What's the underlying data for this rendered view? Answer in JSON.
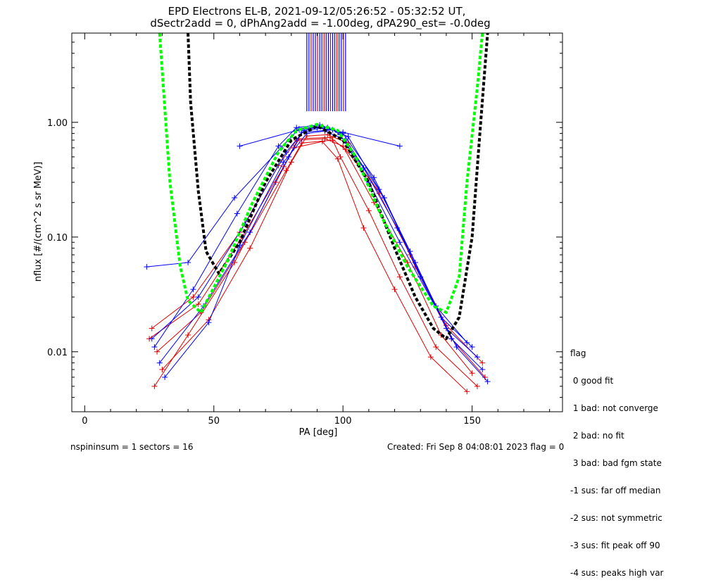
{
  "chart_data": {
    "type": "line",
    "title": "EPD Electrons EL-B, 2021-09-12/05:26:52 - 05:32:52 UT,",
    "subtitle": "dSectr2add = 0, dPhAng2add = -1.00deg, dPA290_est=  -0.0deg",
    "xlabel": "PA [deg]",
    "ylabel": "nflux [#/(cm^2 s sr MeV)]",
    "xlim": [
      -5,
      185
    ],
    "ylim": [
      0.003,
      6.0
    ],
    "yscale": "log",
    "xticks": [
      0,
      50,
      100,
      150
    ],
    "yticks": [
      0.01,
      0.1,
      1.0
    ],
    "ytick_labels": [
      "0.01",
      "0.10",
      "1.00"
    ],
    "series_colors": {
      "red": "#e00000",
      "blue": "#0000ff",
      "green_fit": "#00ff00",
      "black_fit": "#000000"
    },
    "saturated_pa_range": [
      86,
      101
    ],
    "red_series": [
      {
        "x": [
          26,
          42,
          60,
          75,
          82,
          93,
          100,
          112,
          125,
          138,
          150
        ],
        "y": [
          0.016,
          0.03,
          0.11,
          0.42,
          0.7,
          0.72,
          0.62,
          0.2,
          0.06,
          0.014,
          0.0065
        ]
      },
      {
        "x": [
          28,
          45,
          62,
          78,
          84,
          96,
          99,
          110,
          122,
          136,
          152
        ],
        "y": [
          0.01,
          0.022,
          0.09,
          0.38,
          0.66,
          0.7,
          0.5,
          0.17,
          0.045,
          0.011,
          0.005
        ]
      },
      {
        "x": [
          30,
          48,
          64,
          80,
          86,
          94,
          102,
          114,
          126,
          140,
          154
        ],
        "y": [
          0.007,
          0.019,
          0.08,
          0.45,
          0.76,
          0.78,
          0.66,
          0.24,
          0.07,
          0.017,
          0.008
        ]
      },
      {
        "x": [
          27,
          40,
          58,
          74,
          81,
          92,
          98,
          108,
          120,
          134,
          148
        ],
        "y": [
          0.005,
          0.014,
          0.06,
          0.3,
          0.6,
          0.68,
          0.48,
          0.12,
          0.035,
          0.009,
          0.0045
        ]
      },
      {
        "x": [
          25,
          44,
          61,
          77,
          83,
          95,
          101,
          116,
          128,
          142,
          155
        ],
        "y": [
          0.013,
          0.026,
          0.1,
          0.41,
          0.72,
          0.74,
          0.58,
          0.22,
          0.055,
          0.013,
          0.006
        ]
      }
    ],
    "blue_series": [
      {
        "x": [
          24,
          40,
          58,
          76,
          83,
          92,
          100,
          112,
          126,
          140,
          152
        ],
        "y": [
          0.055,
          0.06,
          0.22,
          0.6,
          0.88,
          0.92,
          0.8,
          0.33,
          0.075,
          0.016,
          0.009
        ]
      },
      {
        "x": [
          26,
          44,
          62,
          78,
          85,
          94,
          102,
          114,
          128,
          142,
          154
        ],
        "y": [
          0.013,
          0.03,
          0.13,
          0.55,
          0.85,
          0.9,
          0.75,
          0.26,
          0.06,
          0.013,
          0.007
        ]
      },
      {
        "x": [
          29,
          46,
          64,
          79,
          84,
          96,
          99,
          110,
          122,
          138,
          150
        ],
        "y": [
          0.008,
          0.025,
          0.11,
          0.5,
          0.82,
          0.86,
          0.78,
          0.3,
          0.09,
          0.02,
          0.011
        ]
      },
      {
        "x": [
          31,
          48,
          60,
          77,
          86,
          93,
          101,
          116,
          130,
          144,
          156
        ],
        "y": [
          0.006,
          0.018,
          0.085,
          0.45,
          0.8,
          0.84,
          0.7,
          0.22,
          0.045,
          0.011,
          0.0055
        ]
      },
      {
        "x": [
          27,
          42,
          59,
          75,
          82,
          91,
          98,
          108,
          121,
          136,
          148
        ],
        "y": [
          0.011,
          0.035,
          0.16,
          0.62,
          0.9,
          0.95,
          0.82,
          0.4,
          0.12,
          0.025,
          0.012
        ]
      },
      {
        "x": [
          60,
          82,
          90,
          100,
          122
        ],
        "y": [
          0.62,
          0.85,
          0.9,
          0.82,
          0.62
        ]
      }
    ],
    "green_fit": {
      "x": [
        29,
        33,
        37,
        40,
        45,
        55,
        65,
        75,
        82,
        90,
        98,
        105,
        115,
        125,
        135,
        140,
        145,
        148,
        152,
        154
      ],
      "y": [
        6.0,
        0.3,
        0.055,
        0.028,
        0.022,
        0.06,
        0.2,
        0.55,
        0.85,
        0.96,
        0.85,
        0.5,
        0.15,
        0.055,
        0.025,
        0.022,
        0.045,
        0.3,
        2.0,
        6.0
      ]
    },
    "black_fit": {
      "x": [
        40,
        41,
        44,
        47,
        52,
        60,
        70,
        80,
        90,
        100,
        110,
        120,
        128,
        135,
        140,
        145,
        150,
        153,
        156
      ],
      "y": [
        6.0,
        1.5,
        0.25,
        0.075,
        0.048,
        0.09,
        0.3,
        0.7,
        0.93,
        0.7,
        0.3,
        0.08,
        0.03,
        0.016,
        0.013,
        0.02,
        0.1,
        0.8,
        6.0
      ]
    }
  },
  "legend": {
    "title": "flag",
    "items": [
      " 0 good fit",
      " 1 bad: not converge",
      " 2 bad: no fit",
      " 3 bad: bad fgm state",
      "-1 sus: far off median",
      "-2 sus: not symmetric",
      "-3 sus: fit peak off 90",
      "-4 sus: peaks high var"
    ]
  },
  "footer": {
    "left": "nspininsum =  1  sectors = 16",
    "right": "Created: Fri Sep  8 04:08:01 2023   flag = 0"
  }
}
